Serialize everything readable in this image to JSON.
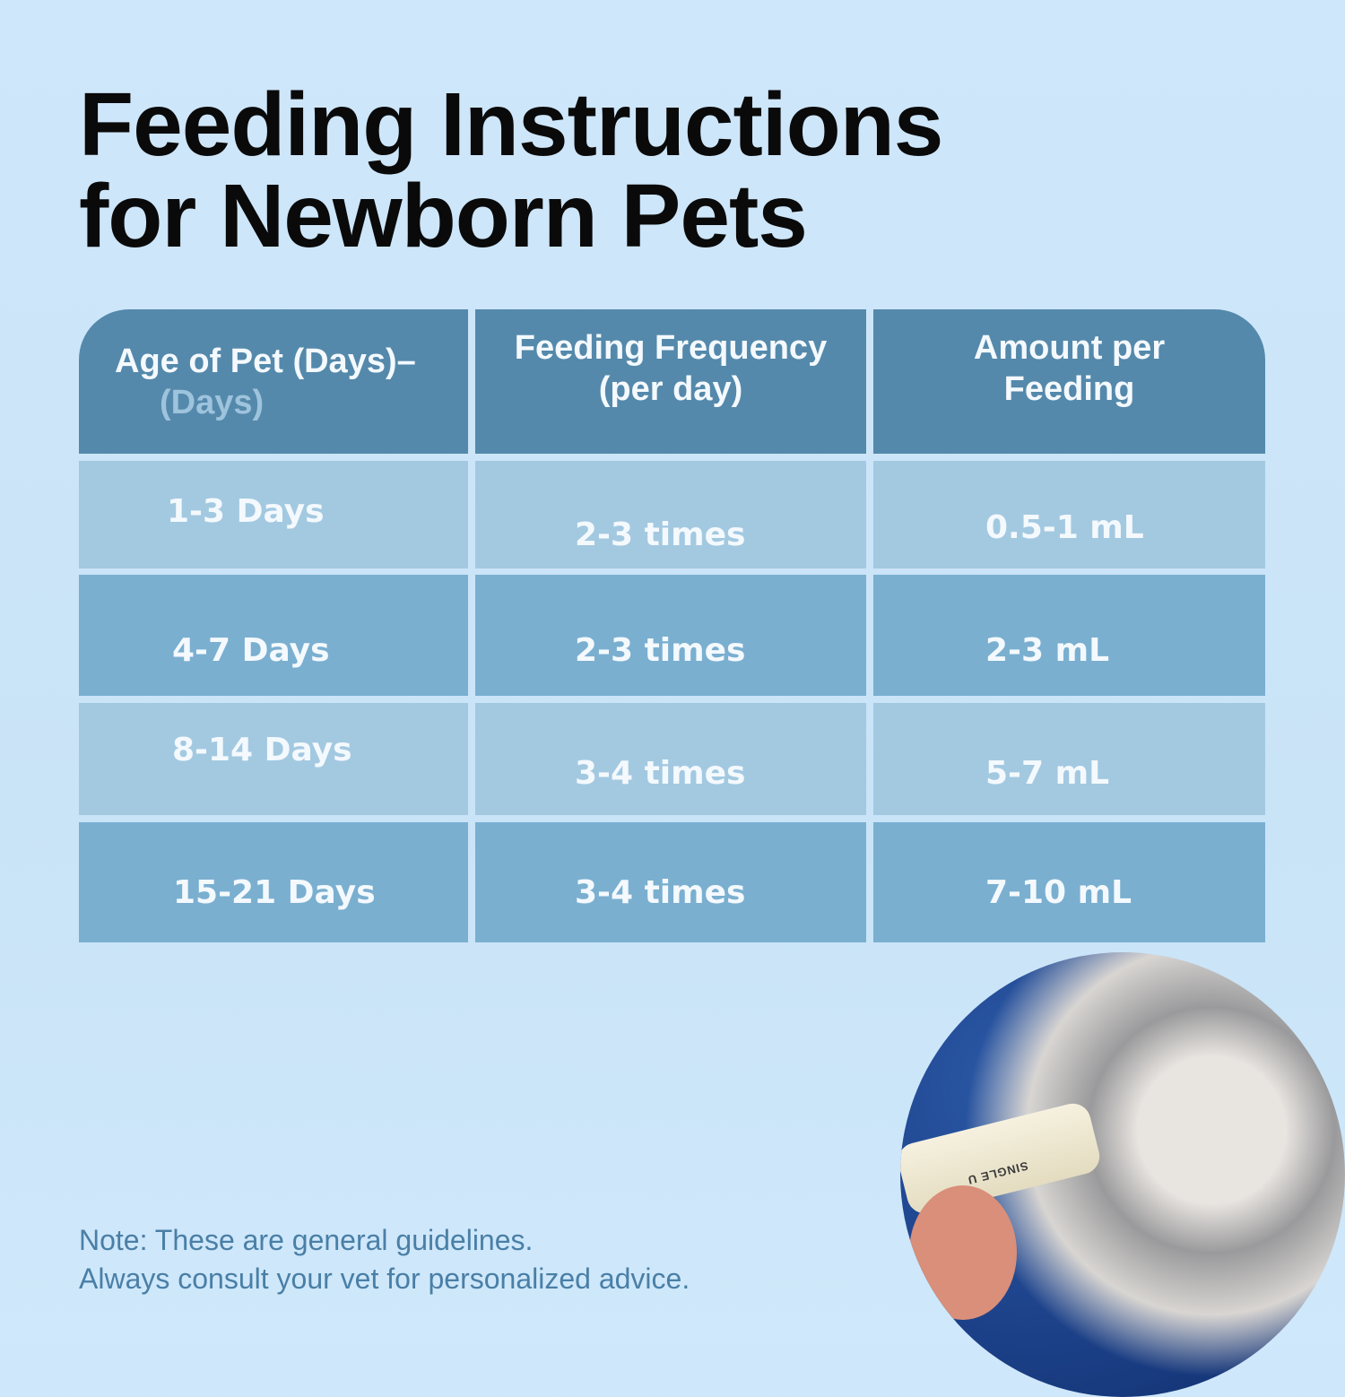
{
  "title_line1": "Feeding Instructions",
  "title_line2": "for Newborn Pets",
  "table": {
    "headers": [
      {
        "main": "Age of Pet (Days)–",
        "sub": "(Days)"
      },
      {
        "main": "Feeding Frequency",
        "sub": "(per day)"
      },
      {
        "main": "Amount per",
        "sub": "Feeding"
      }
    ],
    "rows": [
      [
        "1-3 Days",
        "2-3 times",
        "0.5-1 mL"
      ],
      [
        "4-7 Days",
        "2-3 times",
        "2-3 mL"
      ],
      [
        "8-14 Days",
        "3-4 times",
        "5-7 mL"
      ],
      [
        "15-21 Days",
        "3-4 times",
        "7-10 mL"
      ]
    ]
  },
  "note_line1": "Note: These are general guidelines.",
  "note_line2": "Always consult your vet for personalized advice.",
  "photo": {
    "label": "kitten being fed with syringe",
    "bottle_text": "SINGLE U"
  },
  "colors": {
    "header": "#5489ab",
    "row_light": "#a3c9e1",
    "row_dark": "#7aafd0",
    "background": "#cfe7fa",
    "note": "#4a7fa6"
  }
}
